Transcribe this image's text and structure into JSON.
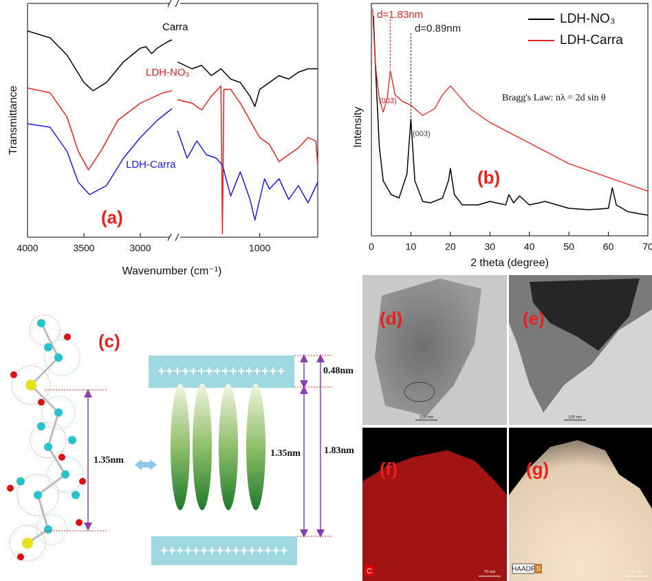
{
  "chart_data": [
    {
      "type": "line",
      "label": "(a)",
      "xlabel": "Wavenumber (cm⁻¹)",
      "ylabel": "Transmittance",
      "xlim": [
        4000,
        400
      ],
      "x_break": [
        2720,
        1850
      ],
      "xticks": [
        4000,
        3500,
        3000,
        1000
      ],
      "ylim": [
        0,
        340
      ],
      "series": [
        {
          "name": "Carra",
          "color": "#000000",
          "x": [
            4000,
            3800,
            3650,
            3500,
            3420,
            3300,
            3150,
            3000,
            2950,
            2900,
            2850,
            2750,
            2720,
            2300,
            1850,
            1700,
            1600,
            1500,
            1400,
            1300,
            1200,
            1100,
            1050,
            1000,
            900,
            800,
            700,
            600,
            500,
            400
          ],
          "values": [
            300,
            290,
            265,
            225,
            213,
            225,
            255,
            275,
            277,
            267,
            275,
            285,
            287,
            null,
            255,
            245,
            250,
            235,
            245,
            230,
            225,
            205,
            190,
            215,
            225,
            235,
            230,
            240,
            245,
            245
          ]
        },
        {
          "name": "LDH-NO₃",
          "color": "#e8211d",
          "x": [
            4000,
            3800,
            3650,
            3550,
            3460,
            3350,
            3200,
            3000,
            2800,
            2720,
            2300,
            1850,
            1700,
            1600,
            1500,
            1400,
            1385,
            1370,
            1300,
            1200,
            1100,
            1000,
            900,
            800,
            700,
            600,
            500,
            420,
            400
          ],
          "values": [
            217,
            210,
            175,
            125,
            98,
            125,
            170,
            195,
            210,
            213,
            null,
            200,
            195,
            185,
            205,
            220,
            5,
            215,
            215,
            195,
            170,
            145,
            135,
            110,
            120,
            130,
            145,
            140,
            105
          ]
        },
        {
          "name": "LDH-Carra",
          "color": "#1a1ae6",
          "x": [
            4000,
            3800,
            3650,
            3550,
            3450,
            3300,
            3150,
            3000,
            2850,
            2720,
            2300,
            1850,
            1750,
            1650,
            1550,
            1450,
            1385,
            1300,
            1200,
            1100,
            1050,
            1000,
            950,
            900,
            800,
            700,
            600,
            500,
            400
          ],
          "values": [
            165,
            160,
            125,
            80,
            62,
            75,
            115,
            145,
            170,
            187,
            null,
            155,
            115,
            140,
            120,
            115,
            105,
            60,
            95,
            55,
            25,
            55,
            85,
            70,
            85,
            55,
            75,
            50,
            80
          ]
        }
      ]
    },
    {
      "type": "line",
      "label": "(b)",
      "xlabel": "2 theta (degree)",
      "ylabel": "Intensity",
      "xlim": [
        0,
        70
      ],
      "xticks": [
        0,
        10,
        20,
        30,
        40,
        50,
        60,
        70
      ],
      "ylim": [
        0,
        338
      ],
      "legend": "upper right",
      "series": [
        {
          "name": "LDH-NO₃",
          "color": "#000000",
          "x": [
            0.5,
            1,
            2,
            3,
            5,
            7,
            9,
            10,
            11,
            13,
            15,
            18,
            19.5,
            20,
            21,
            23,
            27,
            30,
            34,
            34.8,
            36,
            37.5,
            40,
            44,
            50,
            55,
            60,
            61,
            62,
            65,
            70
          ],
          "values": [
            320,
            250,
            130,
            80,
            60,
            55,
            90,
            170,
            80,
            50,
            48,
            55,
            80,
            98,
            60,
            45,
            45,
            50,
            45,
            60,
            48,
            58,
            45,
            50,
            40,
            38,
            40,
            70,
            45,
            35,
            30
          ]
        },
        {
          "name": "LDH-Carra",
          "color": "#e8211d",
          "x": [
            0.3,
            1,
            2,
            3,
            4,
            4.8,
            6,
            8,
            10,
            13,
            16,
            18,
            20,
            22,
            25,
            30,
            35,
            40,
            45,
            50,
            55,
            60,
            65,
            70
          ],
          "values": [
            330,
            250,
            200,
            180,
            200,
            240,
            205,
            195,
            190,
            175,
            185,
            205,
            218,
            205,
            185,
            165,
            150,
            135,
            120,
            105,
            95,
            85,
            75,
            65
          ]
        }
      ],
      "annotations": [
        {
          "text": "d=1.83nm",
          "x": 4.8,
          "color": "#e8211d"
        },
        {
          "text": "d=0.89nm",
          "x": 10,
          "color": "#222222"
        },
        {
          "text": "(003)",
          "x": 4.8,
          "color": "#e8211d"
        },
        {
          "text": "(003)",
          "x": 10,
          "color": "#444444"
        }
      ],
      "equation": "Bragg's Law: nλ = 2d sin θ"
    }
  ],
  "panel_c": {
    "label": "(c)",
    "plus_row": "++++++++++++++++",
    "dims": [
      "1.35nm",
      "1.35nm",
      "0.48nm",
      "1.83nm"
    ]
  },
  "images": [
    {
      "label": "(d)",
      "scale": "100 nm"
    },
    {
      "label": "(e)",
      "scale": "100 nm"
    },
    {
      "label": "(f)",
      "scale": "70 nm",
      "element": "C"
    },
    {
      "label": "(g)",
      "scale": "70 nm",
      "element": "HAADF",
      "element2": "S"
    }
  ]
}
